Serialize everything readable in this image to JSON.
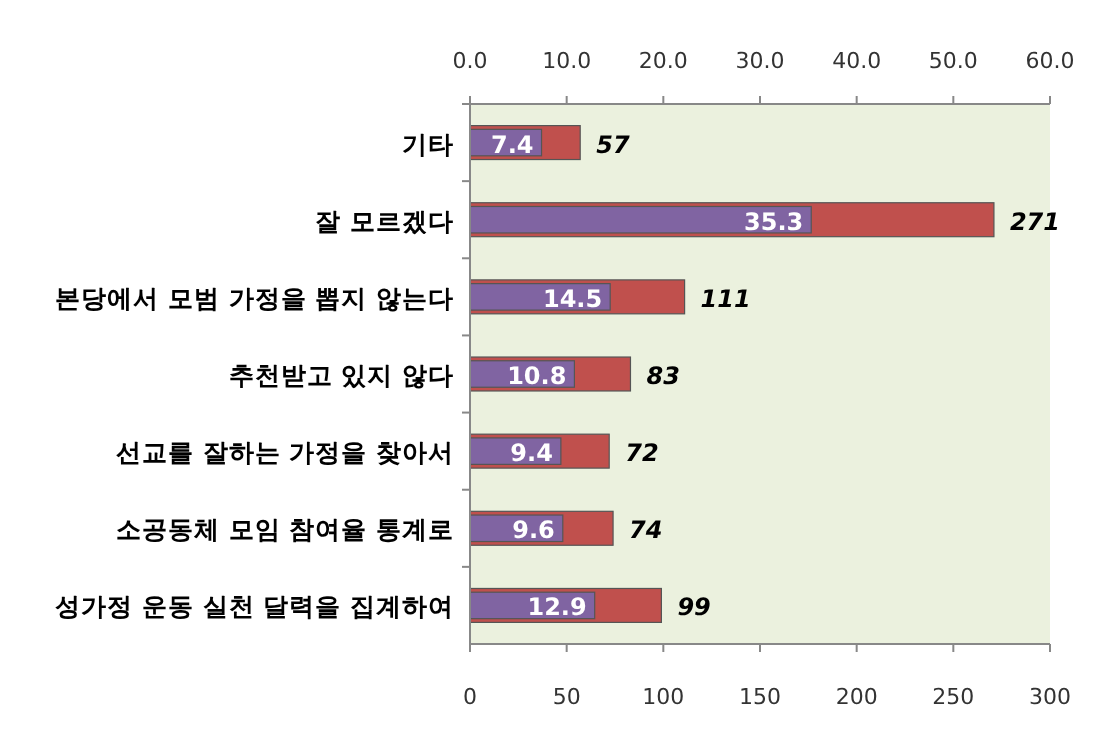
{
  "chart_data": {
    "type": "bar",
    "orientation": "horizontal",
    "categories": [
      "기타",
      "잘 모르겠다",
      "본당에서 모범 가정을 뽑지 않는다",
      "추천받고 있지 않다",
      "선교를 잘하는 가정을 찾아서",
      "소공동체 모임 참여율 통계로",
      "성가정 운동 실천 달력을 집계하여"
    ],
    "series": [
      {
        "color": "#c0504d",
        "values": [
          57,
          271,
          111,
          83,
          72,
          74,
          99
        ]
      },
      {
        "color": "#8064a2",
        "axis": "x2",
        "values": [
          7.4,
          35.3,
          14.5,
          10.8,
          9.4,
          9.6,
          12.9
        ]
      }
    ],
    "xlim": [
      0,
      300
    ],
    "xticks": [
      0,
      50,
      100,
      150,
      200,
      250,
      300
    ],
    "x2lim": [
      0,
      60
    ],
    "x2ticks": [
      {
        "value": 0,
        "label": "0.0"
      },
      {
        "value": 10,
        "label": "10.0"
      },
      {
        "value": 20,
        "label": "20.0"
      },
      {
        "value": 30,
        "label": "30.0"
      },
      {
        "value": 40,
        "label": "40.0"
      },
      {
        "value": 50,
        "label": "50.0"
      },
      {
        "value": 60,
        "label": "60.0"
      }
    ],
    "data_labels": true,
    "grid": false
  }
}
